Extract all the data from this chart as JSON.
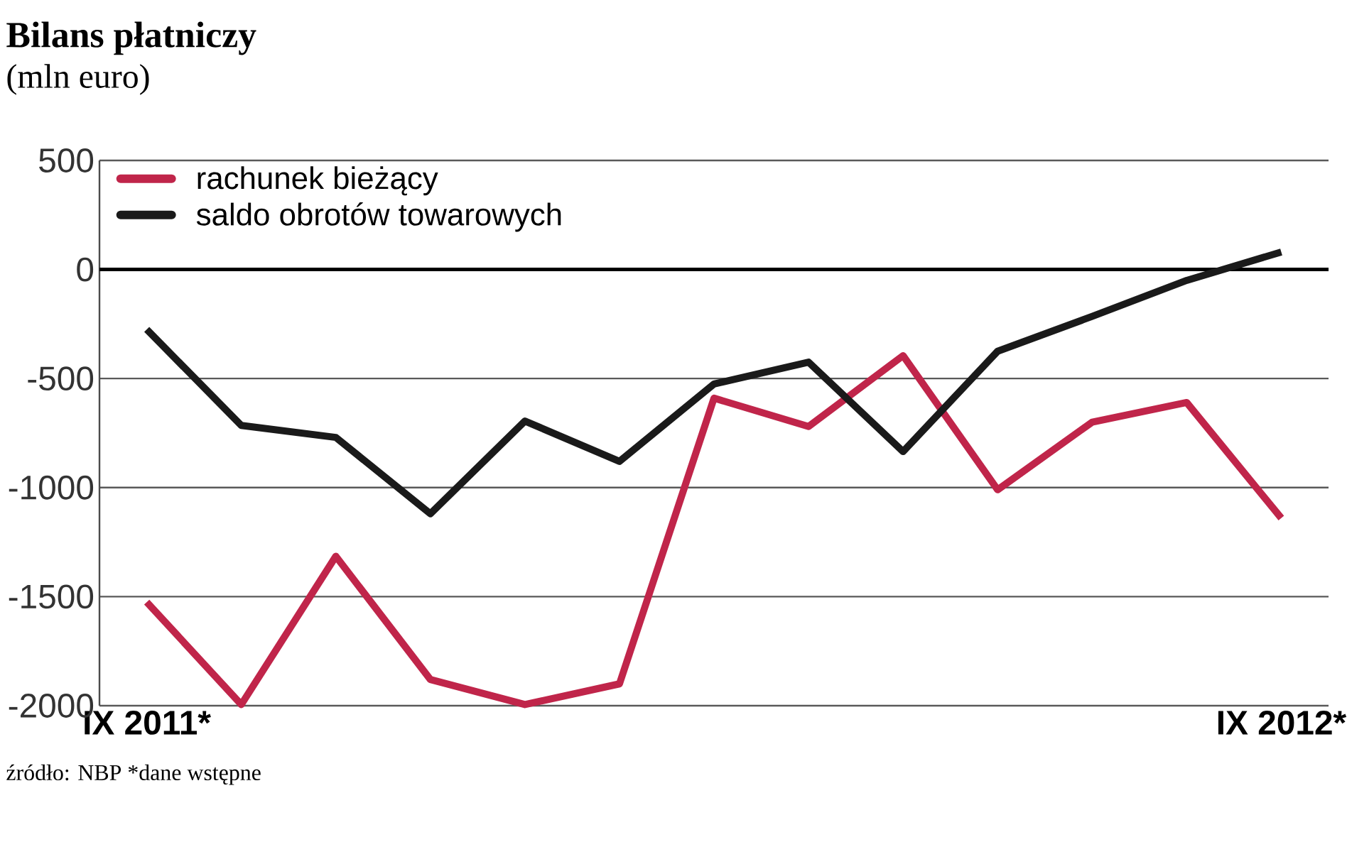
{
  "chart_data": {
    "type": "line",
    "title": "Bilans płatniczy",
    "subtitle": "(mln euro)",
    "categories": [
      "IX 2011*",
      null,
      null,
      null,
      null,
      null,
      null,
      null,
      null,
      null,
      null,
      null,
      "IX 2012*"
    ],
    "series": [
      {
        "name": "rachunek bieżący",
        "color": "#c0254a",
        "values": [
          -1525,
          -1995,
          -1315,
          -1880,
          -1995,
          -1900,
          -590,
          -720,
          -395,
          -1010,
          -700,
          -610,
          -1140
        ]
      },
      {
        "name": "saldo obrotów towarowych",
        "color": "#1a1a1a",
        "values": [
          -275,
          -715,
          -770,
          -1120,
          -695,
          -880,
          -525,
          -425,
          -835,
          -375,
          -215,
          -50,
          80
        ]
      }
    ],
    "ylim": [
      -2000,
      500
    ],
    "yticks": [
      -2000,
      -1500,
      -1000,
      -500,
      0,
      500
    ],
    "grid": "y",
    "legend": "top left",
    "marker": "none",
    "line_style": "solid",
    "ref_lines": [
      {
        "axis": "y",
        "value": 0
      }
    ],
    "annotations": [
      "źródło: NBP *dane wstępne"
    ]
  }
}
